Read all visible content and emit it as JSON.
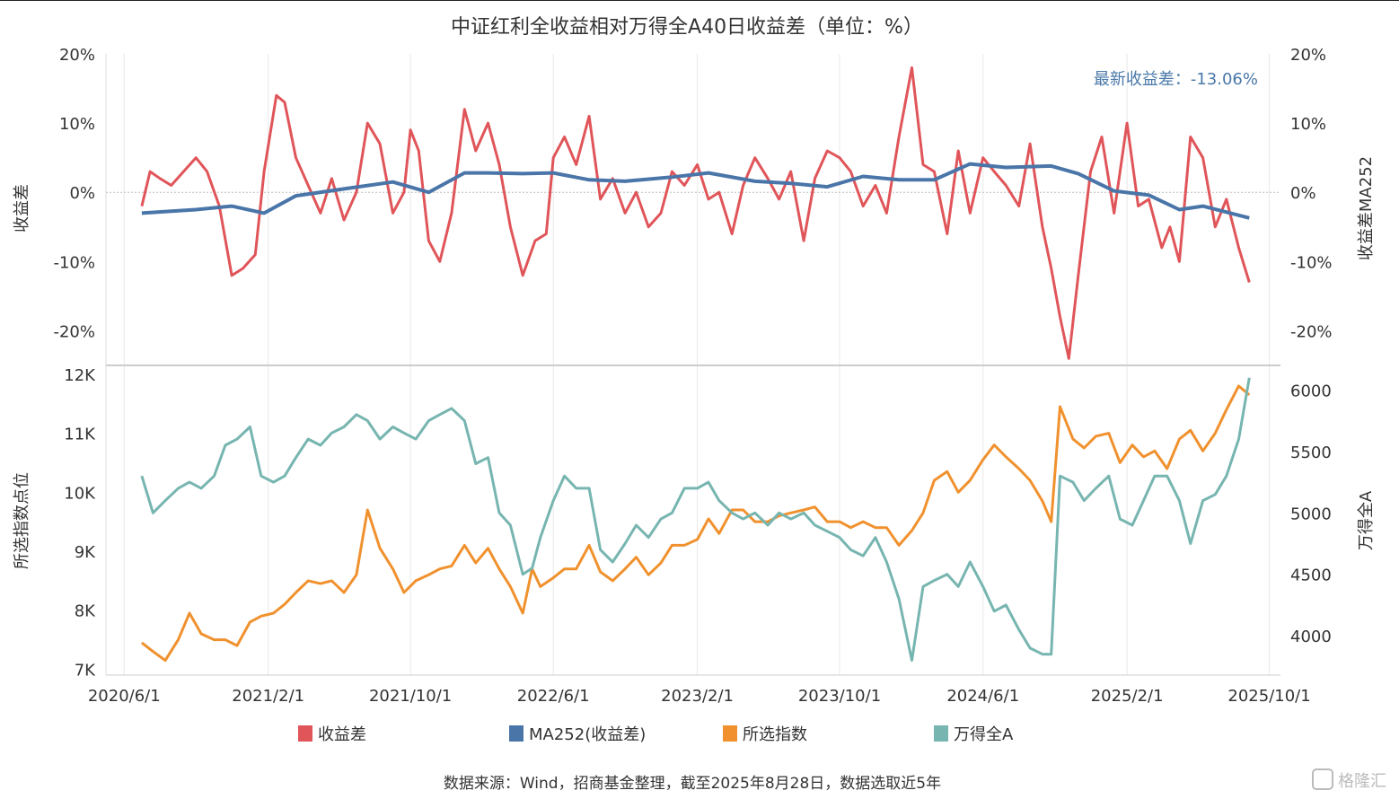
{
  "chart_data": {
    "type": "line",
    "title": "中证红利全收益相对万得全A40日收益差（单位：%）",
    "annotation": "最新收益差：-13.06%",
    "source": "数据来源：Wind，招商基金整理，截至2025年8月28日，数据选取近5年",
    "watermark": "格隆汇",
    "x_ticks": [
      "2020/6/1",
      "2021/2/1",
      "2021/10/1",
      "2022/6/1",
      "2023/2/1",
      "2023/10/1",
      "2024/6/1",
      "2025/2/1",
      "2025/10/1"
    ],
    "x_range": [
      "2020-05-01",
      "2025-10-20"
    ],
    "top_panel": {
      "ylabel_left": "收益差",
      "ylabel_right": "收益差MA252",
      "ylim": [
        -25,
        20
      ],
      "y_ticks": [
        "20%",
        "10%",
        "0%",
        "-10%",
        "-20%"
      ],
      "y_tick_values": [
        20,
        10,
        0,
        -10,
        -20
      ],
      "series": [
        {
          "name": "收益差",
          "color": "#e05559",
          "x": [
            "2020-07-01",
            "2020-07-15",
            "2020-08-01",
            "2020-08-20",
            "2020-09-10",
            "2020-10-01",
            "2020-10-20",
            "2020-11-10",
            "2020-12-01",
            "2020-12-20",
            "2021-01-10",
            "2021-01-25",
            "2021-02-15",
            "2021-03-01",
            "2021-03-20",
            "2021-04-10",
            "2021-05-01",
            "2021-05-20",
            "2021-06-10",
            "2021-07-01",
            "2021-07-20",
            "2021-08-10",
            "2021-09-01",
            "2021-09-20",
            "2021-10-01",
            "2021-10-15",
            "2021-11-01",
            "2021-11-20",
            "2021-12-10",
            "2022-01-01",
            "2022-01-20",
            "2022-02-10",
            "2022-03-01",
            "2022-03-20",
            "2022-04-10",
            "2022-05-01",
            "2022-05-20",
            "2022-06-01",
            "2022-06-20",
            "2022-07-10",
            "2022-08-01",
            "2022-08-20",
            "2022-09-10",
            "2022-10-01",
            "2022-10-20",
            "2022-11-10",
            "2022-12-01",
            "2022-12-20",
            "2023-01-10",
            "2023-02-01",
            "2023-02-20",
            "2023-03-10",
            "2023-04-01",
            "2023-04-20",
            "2023-05-10",
            "2023-06-01",
            "2023-06-20",
            "2023-07-10",
            "2023-08-01",
            "2023-08-20",
            "2023-09-10",
            "2023-10-01",
            "2023-10-20",
            "2023-11-10",
            "2023-12-01",
            "2023-12-20",
            "2024-01-10",
            "2024-02-01",
            "2024-02-20",
            "2024-03-10",
            "2024-04-01",
            "2024-04-20",
            "2024-05-10",
            "2024-06-01",
            "2024-06-20",
            "2024-07-10",
            "2024-08-01",
            "2024-08-20",
            "2024-09-10",
            "2024-09-25",
            "2024-10-10",
            "2024-10-25",
            "2024-11-10",
            "2024-12-01",
            "2024-12-20",
            "2025-01-10",
            "2025-02-01",
            "2025-02-20",
            "2025-03-10",
            "2025-04-01",
            "2025-04-15",
            "2025-05-01",
            "2025-05-20",
            "2025-06-10",
            "2025-07-01",
            "2025-07-20",
            "2025-08-10",
            "2025-08-28"
          ],
          "values": [
            -2,
            3,
            2,
            1,
            3,
            5,
            3,
            -2,
            -12,
            -11,
            -9,
            3,
            14,
            13,
            5,
            1,
            -3,
            2,
            -4,
            0,
            10,
            7,
            -3,
            0,
            9,
            6,
            -7,
            -10,
            -3,
            12,
            6,
            10,
            4,
            -5,
            -12,
            -7,
            -6,
            5,
            8,
            4,
            11,
            -1,
            2,
            -3,
            0,
            -5,
            -3,
            3,
            1,
            4,
            -1,
            0,
            -6,
            1,
            5,
            2,
            -1,
            3,
            -7,
            2,
            6,
            5,
            3,
            -2,
            1,
            -3,
            8,
            18,
            4,
            3,
            -6,
            6,
            -3,
            5,
            3,
            1,
            -2,
            7,
            -5,
            -11,
            -18,
            -24,
            -12,
            3,
            8,
            -3,
            10,
            -2,
            -1,
            -8,
            -5,
            -10,
            8,
            5,
            -5,
            -1,
            -8,
            -13
          ]
        },
        {
          "name": "MA252(收益差)",
          "color": "#4a75a8",
          "x": [
            "2020-07-01",
            "2020-10-01",
            "2020-12-01",
            "2021-01-25",
            "2021-03-20",
            "2021-06-10",
            "2021-09-01",
            "2021-11-01",
            "2022-01-01",
            "2022-02-10",
            "2022-04-10",
            "2022-06-01",
            "2022-08-01",
            "2022-10-01",
            "2022-12-20",
            "2023-02-20",
            "2023-05-10",
            "2023-07-10",
            "2023-09-10",
            "2023-11-10",
            "2024-01-10",
            "2024-03-10",
            "2024-05-10",
            "2024-07-10",
            "2024-09-25",
            "2024-11-10",
            "2025-01-10",
            "2025-03-10",
            "2025-05-01",
            "2025-06-10",
            "2025-08-28"
          ],
          "values": [
            -3,
            -2.5,
            -2,
            -3,
            -0.5,
            0.5,
            1.5,
            0,
            2.8,
            2.8,
            2.7,
            2.8,
            1.8,
            1.6,
            2.2,
            2.8,
            1.6,
            1.3,
            0.8,
            2.3,
            1.8,
            1.8,
            4.1,
            3.6,
            3.8,
            2.7,
            0.2,
            -0.4,
            -2.5,
            -2,
            -3.7
          ]
        }
      ]
    },
    "bottom_panel": {
      "ylabel_left": "所选指数点位",
      "ylabel_right": "万得全A",
      "ylim_left": [
        6900,
        12150
      ],
      "ylim_right": [
        3680,
        6200
      ],
      "y_ticks_left": [
        "12K",
        "11K",
        "10K",
        "9K",
        "8K",
        "7K"
      ],
      "y_tick_values_left": [
        12000,
        11000,
        10000,
        9000,
        8000,
        7000
      ],
      "y_ticks_right": [
        "6000",
        "5500",
        "5000",
        "4500",
        "4000"
      ],
      "y_tick_values_right": [
        6000,
        5500,
        5000,
        4500,
        4000
      ],
      "series": [
        {
          "name": "所选指数",
          "color": "#f0912e",
          "axis": "left",
          "x": [
            "2020-07-01",
            "2020-07-20",
            "2020-08-10",
            "2020-09-01",
            "2020-09-20",
            "2020-10-10",
            "2020-11-01",
            "2020-11-20",
            "2020-12-10",
            "2021-01-01",
            "2021-01-20",
            "2021-02-10",
            "2021-03-01",
            "2021-03-20",
            "2021-04-10",
            "2021-05-01",
            "2021-05-20",
            "2021-06-10",
            "2021-07-01",
            "2021-07-20",
            "2021-08-10",
            "2021-09-01",
            "2021-09-20",
            "2021-10-10",
            "2021-11-01",
            "2021-11-20",
            "2021-12-10",
            "2022-01-01",
            "2022-01-20",
            "2022-02-10",
            "2022-03-01",
            "2022-03-20",
            "2022-04-10",
            "2022-04-26",
            "2022-05-10",
            "2022-06-01",
            "2022-06-20",
            "2022-07-10",
            "2022-08-01",
            "2022-08-20",
            "2022-09-10",
            "2022-10-01",
            "2022-10-20",
            "2022-11-10",
            "2022-12-01",
            "2022-12-20",
            "2023-01-10",
            "2023-02-01",
            "2023-02-20",
            "2023-03-10",
            "2023-04-01",
            "2023-04-20",
            "2023-05-10",
            "2023-06-01",
            "2023-06-20",
            "2023-07-10",
            "2023-08-01",
            "2023-08-20",
            "2023-09-10",
            "2023-10-01",
            "2023-10-20",
            "2023-11-10",
            "2023-12-01",
            "2023-12-20",
            "2024-01-10",
            "2024-02-01",
            "2024-02-20",
            "2024-03-10",
            "2024-04-01",
            "2024-04-20",
            "2024-05-10",
            "2024-06-01",
            "2024-06-20",
            "2024-07-10",
            "2024-08-01",
            "2024-08-20",
            "2024-09-10",
            "2024-09-25",
            "2024-10-10",
            "2024-11-01",
            "2024-11-20",
            "2024-12-10",
            "2025-01-01",
            "2025-01-20",
            "2025-02-10",
            "2025-03-01",
            "2025-03-20",
            "2025-04-10",
            "2025-05-01",
            "2025-05-20",
            "2025-06-10",
            "2025-07-01",
            "2025-07-20",
            "2025-08-10",
            "2025-08-28"
          ],
          "values": [
            7450,
            7300,
            7150,
            7500,
            7950,
            7600,
            7500,
            7500,
            7400,
            7800,
            7900,
            7950,
            8100,
            8300,
            8500,
            8450,
            8500,
            8300,
            8600,
            9700,
            9050,
            8700,
            8300,
            8500,
            8600,
            8700,
            8750,
            9100,
            8800,
            9050,
            8700,
            8400,
            7950,
            8700,
            8400,
            8550,
            8700,
            8700,
            9100,
            8650,
            8500,
            8700,
            8900,
            8600,
            8800,
            9100,
            9100,
            9200,
            9550,
            9300,
            9700,
            9700,
            9500,
            9500,
            9600,
            9650,
            9700,
            9750,
            9500,
            9500,
            9400,
            9500,
            9400,
            9400,
            9100,
            9350,
            9650,
            10200,
            10350,
            10000,
            10200,
            10550,
            10800,
            10600,
            10400,
            10200,
            9850,
            9500,
            11450,
            10900,
            10750,
            10950,
            11000,
            10500,
            10800,
            10600,
            10700,
            10400,
            10900,
            11050,
            10700,
            11000,
            11400,
            11800,
            11650
          ]
        },
        {
          "name": "万得全A",
          "color": "#77b5b0",
          "axis": "right",
          "x": [
            "2020-07-01",
            "2020-07-20",
            "2020-08-10",
            "2020-09-01",
            "2020-09-20",
            "2020-10-10",
            "2020-11-01",
            "2020-11-20",
            "2020-12-10",
            "2021-01-01",
            "2021-01-20",
            "2021-02-10",
            "2021-03-01",
            "2021-03-20",
            "2021-04-10",
            "2021-05-01",
            "2021-05-20",
            "2021-06-10",
            "2021-07-01",
            "2021-07-20",
            "2021-08-10",
            "2021-09-01",
            "2021-09-20",
            "2021-10-10",
            "2021-11-01",
            "2021-11-20",
            "2021-12-10",
            "2022-01-01",
            "2022-01-20",
            "2022-02-10",
            "2022-03-01",
            "2022-03-20",
            "2022-04-10",
            "2022-04-26",
            "2022-05-10",
            "2022-06-01",
            "2022-06-20",
            "2022-07-10",
            "2022-08-01",
            "2022-08-20",
            "2022-09-10",
            "2022-10-01",
            "2022-10-20",
            "2022-11-10",
            "2022-12-01",
            "2022-12-20",
            "2023-01-10",
            "2023-02-01",
            "2023-02-20",
            "2023-03-10",
            "2023-04-01",
            "2023-04-20",
            "2023-05-10",
            "2023-06-01",
            "2023-06-20",
            "2023-07-10",
            "2023-08-01",
            "2023-08-20",
            "2023-09-10",
            "2023-10-01",
            "2023-10-20",
            "2023-11-10",
            "2023-12-01",
            "2023-12-20",
            "2024-01-10",
            "2024-02-01",
            "2024-02-20",
            "2024-03-10",
            "2024-04-01",
            "2024-04-20",
            "2024-05-10",
            "2024-06-01",
            "2024-06-20",
            "2024-07-10",
            "2024-08-01",
            "2024-08-20",
            "2024-09-10",
            "2024-09-25",
            "2024-10-10",
            "2024-11-01",
            "2024-11-20",
            "2024-12-10",
            "2025-01-01",
            "2025-01-20",
            "2025-02-10",
            "2025-03-01",
            "2025-03-20",
            "2025-04-10",
            "2025-05-01",
            "2025-05-20",
            "2025-06-10",
            "2025-07-01",
            "2025-07-20",
            "2025-08-10",
            "2025-08-28"
          ],
          "values": [
            5300,
            5000,
            5100,
            5200,
            5250,
            5200,
            5300,
            5550,
            5600,
            5700,
            5300,
            5250,
            5300,
            5450,
            5600,
            5550,
            5650,
            5700,
            5800,
            5750,
            5600,
            5700,
            5650,
            5600,
            5750,
            5800,
            5850,
            5750,
            5400,
            5450,
            5000,
            4900,
            4500,
            4550,
            4800,
            5100,
            5300,
            5200,
            5200,
            4700,
            4600,
            4750,
            4900,
            4800,
            4950,
            5000,
            5200,
            5200,
            5250,
            5100,
            5000,
            4950,
            5000,
            4900,
            5000,
            4950,
            5000,
            4900,
            4850,
            4800,
            4700,
            4650,
            4800,
            4600,
            4300,
            3800,
            4400,
            4450,
            4500,
            4400,
            4600,
            4400,
            4200,
            4250,
            4050,
            3900,
            3850,
            3850,
            5300,
            5250,
            5100,
            5200,
            5300,
            4950,
            4900,
            5100,
            5300,
            5300,
            5100,
            4750,
            5100,
            5150,
            5300,
            5600,
            6100
          ]
        }
      ]
    },
    "legend": [
      {
        "label": "收益差",
        "color": "#e05559"
      },
      {
        "label": "MA252(收益差)",
        "color": "#4a75a8"
      },
      {
        "label": "所选指数",
        "color": "#f0912e"
      },
      {
        "label": "万得全A",
        "color": "#77b5b0"
      }
    ]
  }
}
